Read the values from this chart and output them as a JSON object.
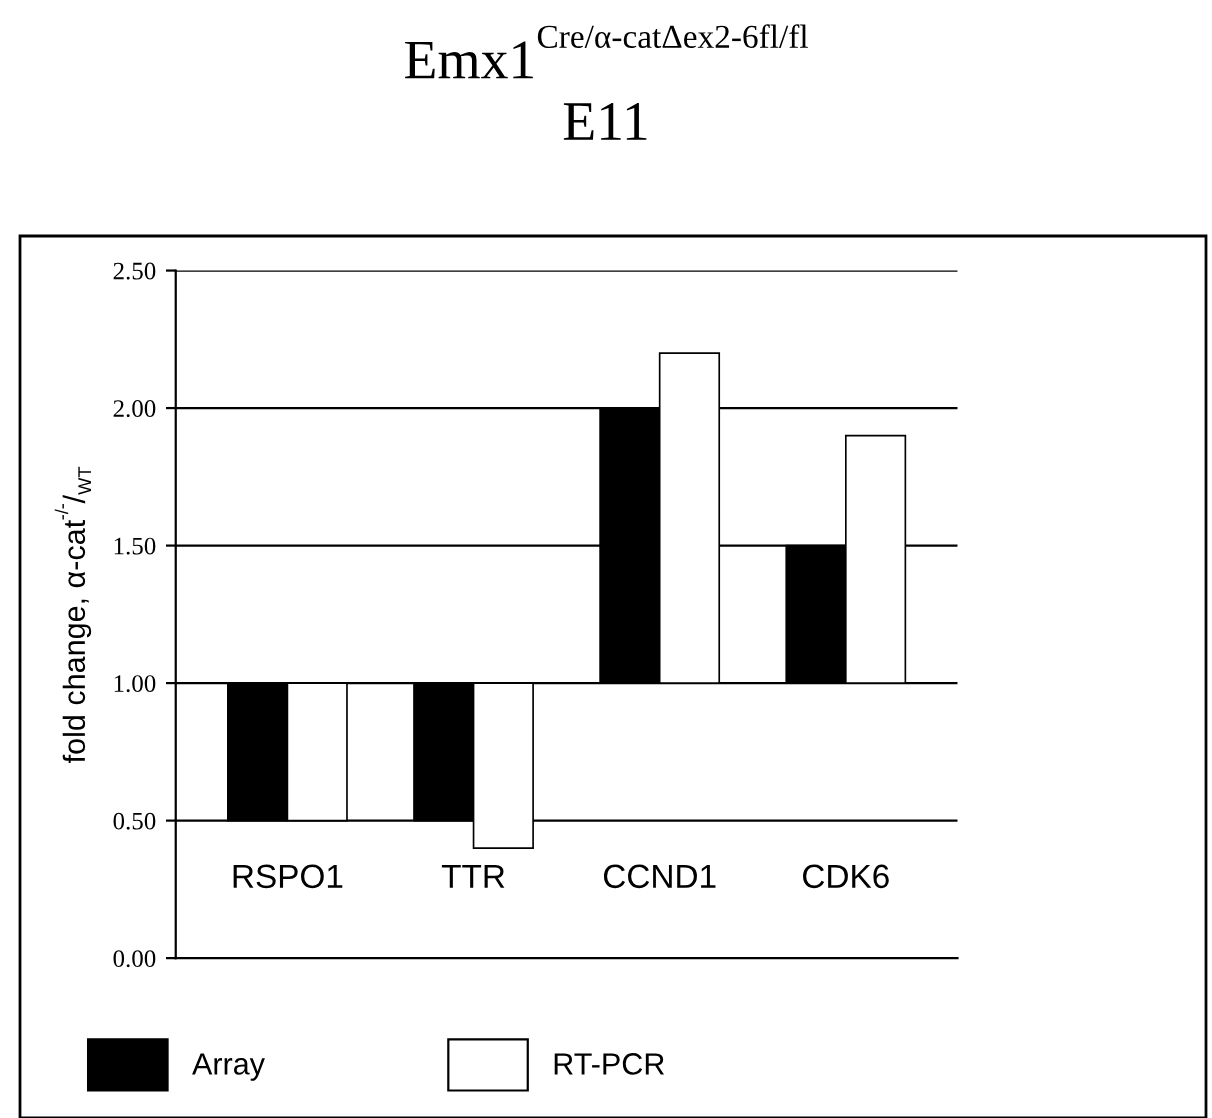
{
  "chart_data": {
    "type": "bar",
    "title": "Emx1$^{Cre/α-catΔex2-6fl/fl}$",
    "subtitle": "E11",
    "ylabel": "fold change, α-cat$^{-/-}$/$_{WT}$",
    "categories": [
      "RSPO1",
      "TTR",
      "CCND1",
      "CDK6"
    ],
    "series": [
      {
        "name": "Array",
        "color": "#000000",
        "base": [
          1,
          1,
          1,
          1
        ],
        "values": [
          -0.5,
          -0.5,
          1.0,
          0.5
        ]
      },
      {
        "name": "RT-PCR",
        "color": "#ffffff",
        "base": [
          1,
          1,
          1,
          1
        ],
        "values": [
          -0.5,
          -0.6,
          1.2,
          0.9
        ]
      }
    ],
    "ylim": [
      0,
      2.5
    ],
    "yticks": [
      {
        "value": 0,
        "label": "0.00"
      },
      {
        "value": 0.5,
        "label": "0.50"
      },
      {
        "value": 1,
        "label": "1.00"
      },
      {
        "value": 1.5,
        "label": "1.50"
      },
      {
        "value": 2,
        "label": "2.00"
      },
      {
        "value": 2.5,
        "label": "2.50"
      }
    ],
    "grid": "y",
    "legend": "bottom left"
  }
}
